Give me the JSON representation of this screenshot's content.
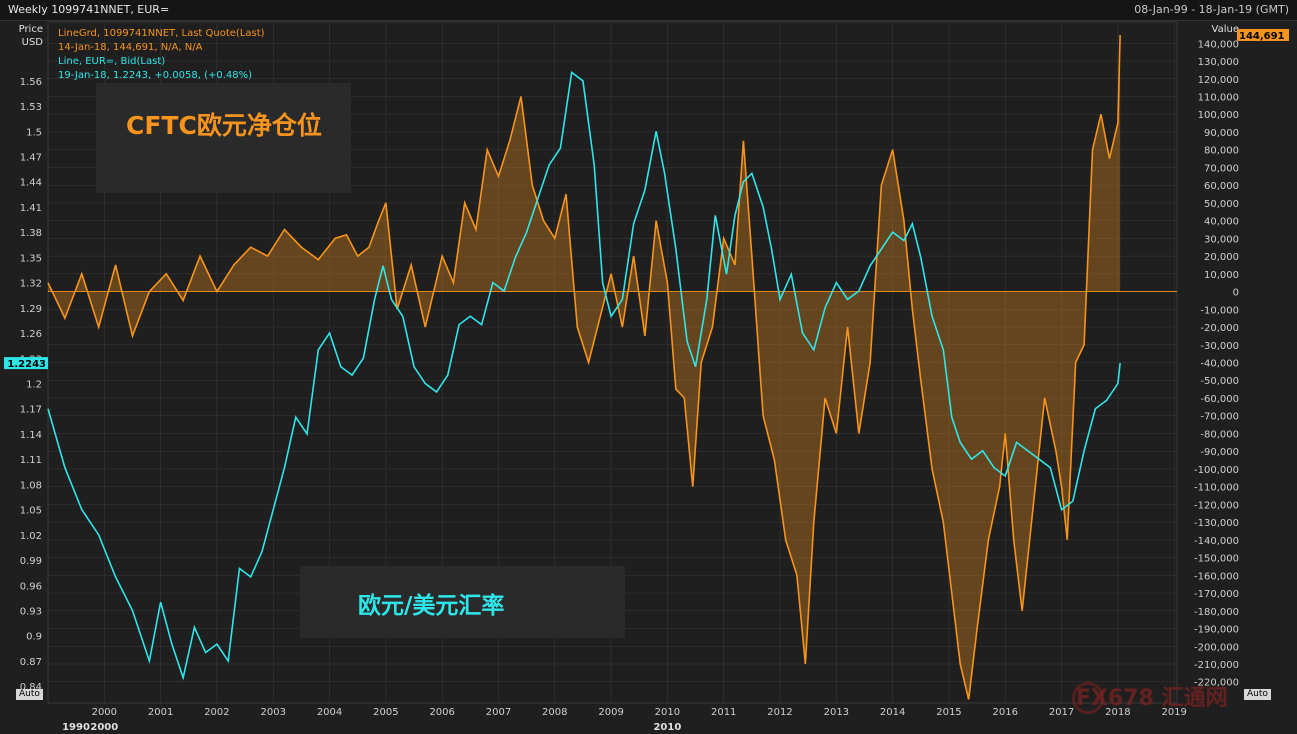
{
  "header": {
    "title": "Weekly 1099741NNET, EUR=",
    "date_range": "08-Jan-99 - 18-Jan-19 (GMT)"
  },
  "legend": {
    "series1_line1": "LineGrd, 1099741NNET, Last Quote(Last)",
    "series1_line2": "14-Jan-18, 144,691, N/A, N/A",
    "series2_line1": "Line, EUR=, Bid(Last)",
    "series2_line2": "19-Jan-18, 1.2243, +0.0058, (+0.48%)"
  },
  "annotations": {
    "cftc": "CFTC欧元净仓位",
    "fx": "欧元/美元汇率"
  },
  "auto_left": "Auto",
  "auto_right": "Auto",
  "watermark": "FX678 汇通网",
  "colors": {
    "cftc": "#f7941d",
    "eurusd": "#2ee6ea",
    "background": "#1f1f1f",
    "grid": "#3a3a3a"
  },
  "chart_data": {
    "type": "line",
    "left_axis": {
      "title_line1": "Price",
      "title_line2": "USD",
      "range": [
        0.82,
        1.63
      ],
      "ticks": [
        "1.56",
        "1.53",
        "1.5",
        "1.47",
        "1.44",
        "1.41",
        "1.38",
        "1.35",
        "1.32",
        "1.29",
        "1.26",
        "1.23",
        "1.2",
        "1.17",
        "1.14",
        "1.11",
        "1.08",
        "1.05",
        "1.02",
        "0.99",
        "0.96",
        "0.93",
        "0.9",
        "0.87",
        "0.84"
      ],
      "last_value_label": "1.2243"
    },
    "right_axis": {
      "title": "Value",
      "range": [
        -232000,
        152000
      ],
      "ticks": [
        "140,000",
        "130,000",
        "120,000",
        "110,000",
        "100,000",
        "90,000",
        "80,000",
        "70,000",
        "60,000",
        "50,000",
        "40,000",
        "30,000",
        "20,000",
        "10,000",
        "0",
        "-10,000",
        "-20,000",
        "-30,000",
        "-40,000",
        "-50,000",
        "-60,000",
        "-70,000",
        "-80,000",
        "-90,000",
        "-100,000",
        "-110,000",
        "-120,000",
        "-130,000",
        "-140,000",
        "-150,000",
        "-160,000",
        "-170,000",
        "-180,000",
        "-190,000",
        "-200,000",
        "-210,000",
        "-220,000"
      ],
      "last_value_label": "144,691"
    },
    "x_axis": {
      "range": [
        1999.0,
        2019.05
      ],
      "year_ticks": [
        "2000",
        "2001",
        "2002",
        "2003",
        "2004",
        "2005",
        "2006",
        "2007",
        "2008",
        "2009",
        "2010",
        "2011",
        "2012",
        "2013",
        "2014",
        "2015",
        "2016",
        "2017",
        "2018",
        "2019"
      ],
      "decade_labels": [
        "1990",
        "2000",
        "2010"
      ]
    },
    "series": [
      {
        "name": "1099741NNET",
        "axis": "right",
        "x": [
          1999.0,
          1999.3,
          1999.6,
          1999.9,
          2000.2,
          2000.5,
          2000.8,
          2001.1,
          2001.4,
          2001.7,
          2002.0,
          2002.3,
          2002.6,
          2002.9,
          2003.2,
          2003.5,
          2003.8,
          2004.1,
          2004.3,
          2004.5,
          2004.7,
          2004.85,
          2005.0,
          2005.2,
          2005.45,
          2005.7,
          2006.0,
          2006.2,
          2006.4,
          2006.6,
          2006.8,
          2007.0,
          2007.2,
          2007.4,
          2007.6,
          2007.8,
          2008.0,
          2008.2,
          2008.4,
          2008.6,
          2008.8,
          2009.0,
          2009.2,
          2009.4,
          2009.6,
          2009.8,
          2010.0,
          2010.15,
          2010.3,
          2010.45,
          2010.6,
          2010.8,
          2011.0,
          2011.2,
          2011.35,
          2011.5,
          2011.7,
          2011.9,
          2012.1,
          2012.3,
          2012.45,
          2012.6,
          2012.8,
          2013.0,
          2013.2,
          2013.4,
          2013.6,
          2013.8,
          2014.0,
          2014.2,
          2014.35,
          2014.5,
          2014.7,
          2014.9,
          2015.05,
          2015.2,
          2015.35,
          2015.5,
          2015.7,
          2015.9,
          2016.0,
          2016.15,
          2016.3,
          2016.5,
          2016.7,
          2016.9,
          2017.0,
          2017.1,
          2017.25,
          2017.4,
          2017.55,
          2017.7,
          2017.85,
          2018.0,
          2018.04
        ],
        "values": [
          5000,
          -15000,
          10000,
          -20000,
          15000,
          -25000,
          0,
          10000,
          -5000,
          20000,
          0,
          15000,
          25000,
          20000,
          35000,
          25000,
          18000,
          30000,
          32000,
          20000,
          25000,
          38000,
          50000,
          -10000,
          15000,
          -20000,
          20000,
          5000,
          50000,
          35000,
          80000,
          65000,
          85000,
          110000,
          60000,
          40000,
          30000,
          55000,
          -20000,
          -40000,
          -15000,
          10000,
          -20000,
          20000,
          -25000,
          40000,
          5000,
          -55000,
          -60000,
          -110000,
          -40000,
          -20000,
          30000,
          15000,
          85000,
          20000,
          -70000,
          -95000,
          -140000,
          -160000,
          -210000,
          -130000,
          -60000,
          -80000,
          -20000,
          -80000,
          -40000,
          60000,
          80000,
          40000,
          -10000,
          -50000,
          -100000,
          -130000,
          -170000,
          -210000,
          -230000,
          -190000,
          -140000,
          -110000,
          -80000,
          -140000,
          -180000,
          -120000,
          -60000,
          -90000,
          -110000,
          -140000,
          -40000,
          -30000,
          80000,
          100000,
          75000,
          95000,
          144691
        ]
      },
      {
        "name": "EUR=",
        "axis": "left",
        "x": [
          1999.0,
          1999.3,
          1999.6,
          1999.9,
          2000.2,
          2000.5,
          2000.8,
          2001.0,
          2001.2,
          2001.4,
          2001.6,
          2001.8,
          2002.0,
          2002.2,
          2002.4,
          2002.6,
          2002.8,
          2003.0,
          2003.2,
          2003.4,
          2003.6,
          2003.8,
          2004.0,
          2004.2,
          2004.4,
          2004.6,
          2004.8,
          2004.95,
          2005.1,
          2005.3,
          2005.5,
          2005.7,
          2005.9,
          2006.1,
          2006.3,
          2006.5,
          2006.7,
          2006.9,
          2007.1,
          2007.3,
          2007.5,
          2007.7,
          2007.9,
          2008.1,
          2008.3,
          2008.5,
          2008.7,
          2008.85,
          2009.0,
          2009.2,
          2009.4,
          2009.6,
          2009.8,
          2009.95,
          2010.15,
          2010.35,
          2010.5,
          2010.7,
          2010.85,
          2011.05,
          2011.2,
          2011.35,
          2011.5,
          2011.7,
          2011.85,
          2012.0,
          2012.2,
          2012.4,
          2012.6,
          2012.8,
          2013.0,
          2013.2,
          2013.4,
          2013.6,
          2013.8,
          2014.0,
          2014.2,
          2014.35,
          2014.5,
          2014.7,
          2014.9,
          2015.05,
          2015.2,
          2015.4,
          2015.6,
          2015.8,
          2016.0,
          2016.2,
          2016.4,
          2016.6,
          2016.8,
          2017.0,
          2017.2,
          2017.4,
          2017.6,
          2017.8,
          2018.0,
          2018.04
        ],
        "values": [
          1.17,
          1.1,
          1.05,
          1.02,
          0.97,
          0.93,
          0.87,
          0.94,
          0.89,
          0.85,
          0.91,
          0.88,
          0.89,
          0.87,
          0.98,
          0.97,
          1.0,
          1.05,
          1.1,
          1.16,
          1.14,
          1.24,
          1.26,
          1.22,
          1.21,
          1.23,
          1.3,
          1.34,
          1.3,
          1.28,
          1.22,
          1.2,
          1.19,
          1.21,
          1.27,
          1.28,
          1.27,
          1.32,
          1.31,
          1.35,
          1.38,
          1.42,
          1.46,
          1.48,
          1.57,
          1.56,
          1.46,
          1.32,
          1.28,
          1.3,
          1.39,
          1.43,
          1.5,
          1.45,
          1.36,
          1.25,
          1.22,
          1.3,
          1.4,
          1.33,
          1.4,
          1.44,
          1.45,
          1.41,
          1.36,
          1.3,
          1.33,
          1.26,
          1.24,
          1.29,
          1.32,
          1.3,
          1.31,
          1.34,
          1.36,
          1.38,
          1.37,
          1.39,
          1.35,
          1.28,
          1.24,
          1.16,
          1.13,
          1.11,
          1.12,
          1.1,
          1.09,
          1.13,
          1.12,
          1.11,
          1.1,
          1.05,
          1.06,
          1.12,
          1.17,
          1.18,
          1.2,
          1.2243
        ]
      }
    ]
  }
}
